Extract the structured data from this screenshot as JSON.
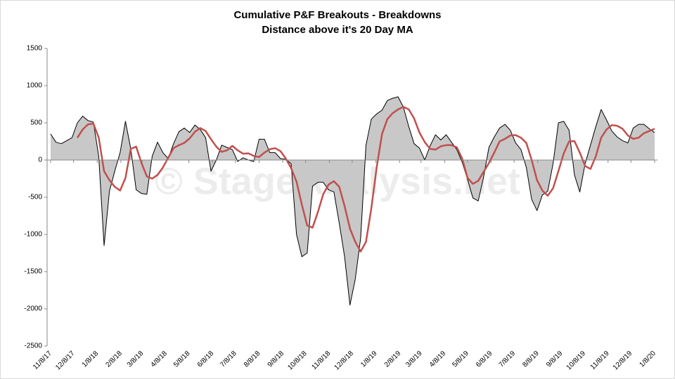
{
  "chart_data": {
    "type": "area-line",
    "title": "Cumulative P&F Breakouts - Breakdowns",
    "subtitle": "Distance above it's 20 Day MA",
    "watermark": "© StageAnalysis.net",
    "x": [
      "11/8/17",
      "11/15/17",
      "11/22/17",
      "11/29/17",
      "12/6/17",
      "12/13/17",
      "12/20/17",
      "12/27/17",
      "1/3/18",
      "1/10/18",
      "1/17/18",
      "1/24/18",
      "1/31/18",
      "2/7/18",
      "2/14/18",
      "2/21/18",
      "2/28/18",
      "3/7/18",
      "3/14/18",
      "3/21/18",
      "3/28/18",
      "4/4/18",
      "4/11/18",
      "4/18/18",
      "4/25/18",
      "5/2/18",
      "5/9/18",
      "5/16/18",
      "5/23/18",
      "5/30/18",
      "6/6/18",
      "6/13/18",
      "6/20/18",
      "6/27/18",
      "7/4/18",
      "7/11/18",
      "7/18/18",
      "7/25/18",
      "8/1/18",
      "8/8/18",
      "8/15/18",
      "8/22/18",
      "8/29/18",
      "9/5/18",
      "9/12/18",
      "9/19/18",
      "9/26/18",
      "10/3/18",
      "10/10/18",
      "10/17/18",
      "10/24/18",
      "10/31/18",
      "11/7/18",
      "11/14/18",
      "11/21/18",
      "11/28/18",
      "12/5/18",
      "12/12/18",
      "12/19/18",
      "12/26/18",
      "1/2/19",
      "1/9/19",
      "1/16/19",
      "1/23/19",
      "1/30/19",
      "2/6/19",
      "2/13/19",
      "2/20/19",
      "2/27/19",
      "3/6/19",
      "3/13/19",
      "3/20/19",
      "3/27/19",
      "4/3/19",
      "4/10/19",
      "4/17/19",
      "4/24/19",
      "5/1/19",
      "5/8/19",
      "5/15/19",
      "5/22/19",
      "5/29/19",
      "6/5/19",
      "6/12/19",
      "6/19/19",
      "6/26/19",
      "7/3/19",
      "7/10/19",
      "7/17/19",
      "7/24/19",
      "7/31/19",
      "8/7/19",
      "8/14/19",
      "8/21/19",
      "8/28/19",
      "9/4/19",
      "9/11/19",
      "9/18/19",
      "9/25/19",
      "10/2/19",
      "10/9/19",
      "10/16/19",
      "10/23/19",
      "10/30/19",
      "11/6/19",
      "11/13/19",
      "11/20/19",
      "11/27/19",
      "12/4/19",
      "12/11/19",
      "12/18/19",
      "12/25/19",
      "1/1/20",
      "1/8/20"
    ],
    "series": [
      {
        "color": "#000000",
        "fill": "#c8c8c8",
        "values": [
          350,
          240,
          220,
          260,
          300,
          500,
          590,
          530,
          510,
          50,
          -1150,
          -420,
          -150,
          100,
          520,
          150,
          -400,
          -450,
          -460,
          50,
          240,
          100,
          20,
          220,
          380,
          430,
          370,
          470,
          410,
          300,
          -150,
          0,
          200,
          170,
          140,
          -20,
          30,
          0,
          -20,
          280,
          280,
          100,
          100,
          20,
          10,
          -50,
          -1000,
          -1300,
          -1250,
          -350,
          -300,
          -300,
          -400,
          -430,
          -850,
          -1300,
          -1950,
          -1600,
          -1050,
          200,
          550,
          620,
          670,
          800,
          830,
          850,
          710,
          450,
          220,
          160,
          0,
          190,
          340,
          270,
          340,
          240,
          140,
          -30,
          -260,
          -510,
          -550,
          -230,
          170,
          310,
          430,
          480,
          400,
          230,
          140,
          -100,
          -530,
          -680,
          -470,
          -420,
          -50,
          500,
          520,
          400,
          -200,
          -430,
          -50,
          200,
          450,
          680,
          540,
          390,
          310,
          260,
          230,
          430,
          480,
          480,
          420,
          370
        ]
      },
      {
        "color": "#c0504d",
        "values": [
          null,
          null,
          null,
          null,
          null,
          300,
          410,
          480,
          490,
          300,
          -150,
          -270,
          -360,
          -410,
          -240,
          150,
          180,
          -40,
          -220,
          -250,
          -200,
          -100,
          30,
          160,
          200,
          230,
          290,
          380,
          430,
          390,
          280,
          180,
          110,
          130,
          190,
          130,
          85,
          90,
          55,
          40,
          100,
          145,
          160,
          120,
          20,
          -110,
          -290,
          -600,
          -880,
          -910,
          -700,
          -460,
          -330,
          -285,
          -360,
          -620,
          -920,
          -1100,
          -1230,
          -1100,
          -650,
          -100,
          350,
          550,
          630,
          680,
          715,
          680,
          560,
          370,
          240,
          150,
          140,
          185,
          200,
          200,
          170,
          20,
          -240,
          -320,
          -280,
          -160,
          -40,
          100,
          250,
          285,
          330,
          335,
          300,
          230,
          0,
          -270,
          -410,
          -480,
          -380,
          -150,
          90,
          250,
          255,
          100,
          -80,
          -120,
          50,
          300,
          410,
          470,
          460,
          420,
          330,
          285,
          300,
          360,
          390,
          420
        ]
      }
    ],
    "xlim": [
      "11/8/17",
      "1/8/20"
    ],
    "xticks": [
      "11/8/17",
      "12/8/17",
      "1/8/18",
      "2/8/18",
      "3/8/18",
      "4/8/18",
      "5/8/18",
      "6/8/18",
      "7/8/18",
      "8/8/18",
      "9/8/18",
      "10/8/18",
      "11/8/18",
      "12/8/18",
      "1/8/19",
      "2/8/19",
      "3/8/19",
      "4/8/19",
      "5/8/19",
      "6/8/19",
      "7/8/19",
      "8/8/19",
      "9/8/19",
      "10/8/19",
      "11/8/19",
      "12/8/19",
      "1/8/20"
    ],
    "ylim": [
      -2500,
      1500
    ],
    "yticks": [
      -2500,
      -2000,
      -1500,
      -1000,
      -500,
      0,
      500,
      1000,
      1500
    ],
    "grid": false
  }
}
